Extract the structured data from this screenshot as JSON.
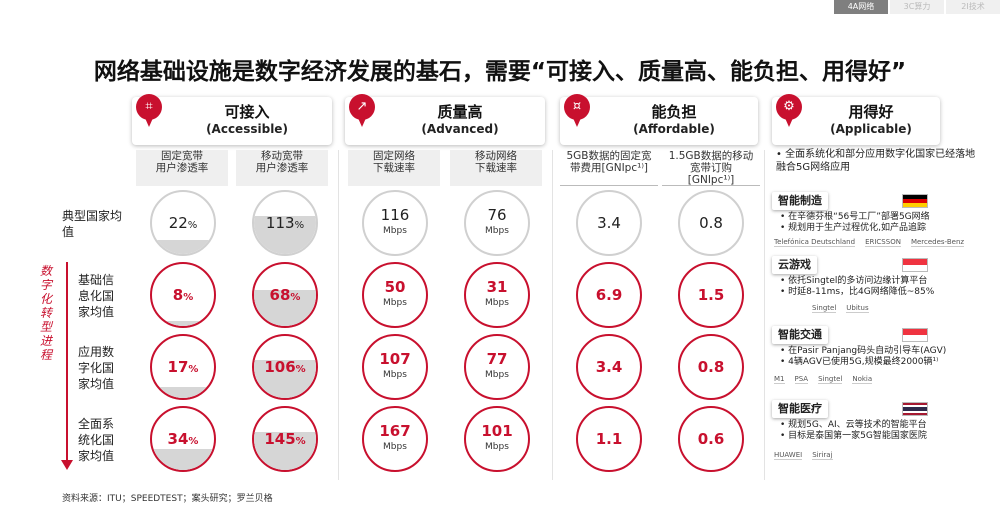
{
  "topnav": [
    "4A网络",
    "3C算力",
    "2I技术"
  ],
  "title": "网络基础设施是数字经济发展的基石，需要“可接入、质量高、能负担、用得好”",
  "sections": [
    {
      "name": "可接入",
      "en": "(Accessible)",
      "icon": "network-node-icon"
    },
    {
      "name": "质量高",
      "en": "(Advanced)",
      "icon": "speed-chart-icon"
    },
    {
      "name": "能负担",
      "en": "(Affordable)",
      "icon": "coins-icon"
    },
    {
      "name": "用得好",
      "en": "(Applicable)",
      "icon": "gears-icon"
    }
  ],
  "columns": [
    "固定宽带\n用户渗透率",
    "移动宽带\n用户渗透率",
    "固定网络\n下载速率",
    "移动网络\n下载速率",
    "5GB数据的固定宽\n带费用[GNIpc¹⁾]",
    "1.5GB数据的移动\n宽带订购\n[GNIpc¹⁾]"
  ],
  "rows": [
    {
      "label": "典型国家均\n值",
      "values": [
        "22",
        "113",
        "116",
        "76",
        "3.4",
        "0.8"
      ]
    },
    {
      "label": "基础信\n息化国\n家均值",
      "values": [
        "8",
        "68",
        "50",
        "31",
        "6.9",
        "1.5"
      ]
    },
    {
      "label": "应用数\n字化国\n家均值",
      "values": [
        "17",
        "106",
        "107",
        "77",
        "3.4",
        "0.8"
      ]
    },
    {
      "label": "全面系\n统化国\n家均值",
      "values": [
        "34",
        "145",
        "167",
        "101",
        "1.1",
        "0.6"
      ]
    }
  ],
  "units": {
    "percent": "%",
    "speed": "Mbps"
  },
  "fill_fractions": [
    [
      0.22,
      0.62,
      0,
      0,
      0,
      0
    ],
    [
      0.08,
      0.58,
      0,
      0,
      0,
      0
    ],
    [
      0.17,
      0.62,
      0,
      0,
      0,
      0
    ],
    [
      0.34,
      0.62,
      0,
      0,
      0,
      0
    ]
  ],
  "progress_label": "数字化转型进程",
  "applicable": {
    "intro": "全面系统化和部分应用数字化国家已经落地融合5G网络应用",
    "cases": [
      {
        "title": "智能制造",
        "flag": "germany-flag",
        "items": [
          "在辛德芬根“56号工厂”部署5G网络",
          "规划用于生产过程优化,如产品追踪"
        ],
        "logos": [
          "Telefónica Deutschland",
          "ERICSSON",
          "Mercedes-Benz"
        ]
      },
      {
        "title": "云游戏",
        "flag": "singapore-flag",
        "items": [
          "依托Singtel的多访问边缘计算平台",
          "时延8-11ms，比4G网络降低~85%"
        ],
        "logos": [
          "Singtel",
          "Ubitus"
        ]
      },
      {
        "title": "智能交通",
        "flag": "singapore-flag",
        "items": [
          "在Pasir Panjang码头自动引导车(AGV)",
          "4辆AGV已使用5G,规模最终2000辆¹⁾"
        ],
        "logos": [
          "M1",
          "PSA",
          "Singtel",
          "Nokia"
        ]
      },
      {
        "title": "智能医疗",
        "flag": "thailand-flag",
        "items": [
          "规划5G、AI、云等技术的智能平台",
          "目标是泰国第一家5G智能国家医院"
        ],
        "logos": [
          "HUAWEI",
          "Siriraj"
        ]
      }
    ]
  },
  "source": "资料来源：ITU；SPEEDTEST；案头研究；罗兰贝格",
  "colors": {
    "accent": "#c8102e",
    "ring_grey": "#d0d0d0",
    "fill_grey": "#d6d6d6"
  }
}
